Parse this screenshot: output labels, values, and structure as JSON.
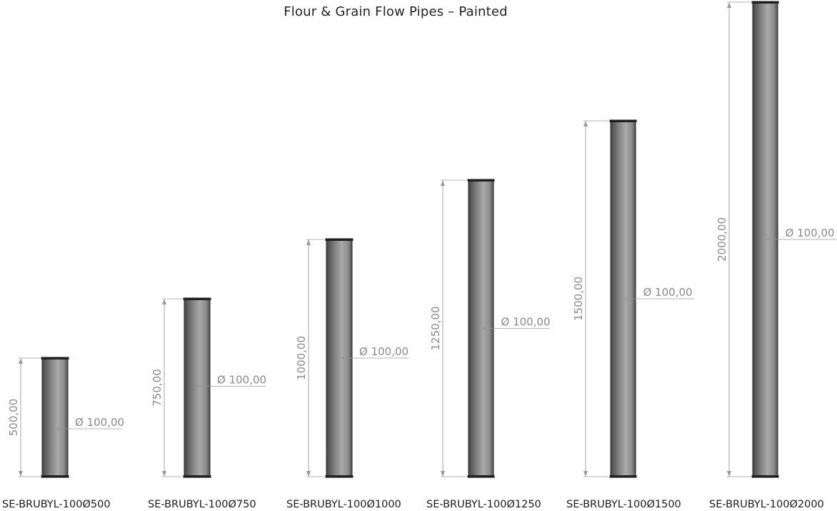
{
  "title": "Flour & Grain Flow Pipes – Painted",
  "colors": {
    "pipe_dark": "#4a4a4a",
    "pipe_light": "#b5b5b5",
    "dimension_line": "#9a9a9a",
    "dimension_text": "#8a8a8a",
    "label_text": "#1c1c1c"
  },
  "pipes": [
    {
      "part_number": "SE-BRUBYL-100Ø500",
      "length": 500,
      "length_label": "500,00",
      "diameter_label": "Ø 100,00"
    },
    {
      "part_number": "SE-BRUBYL-100Ø750",
      "length": 750,
      "length_label": "750,00",
      "diameter_label": "Ø 100,00"
    },
    {
      "part_number": "SE-BRUBYL-100Ø1000",
      "length": 1000,
      "length_label": "1000,00",
      "diameter_label": "Ø 100,00"
    },
    {
      "part_number": "SE-BRUBYL-100Ø1250",
      "length": 1250,
      "length_label": "1250,00",
      "diameter_label": "Ø 100,00"
    },
    {
      "part_number": "SE-BRUBYL-100Ø1500",
      "length": 1500,
      "length_label": "1500,00",
      "diameter_label": "Ø 100,00"
    },
    {
      "part_number": "SE-BRUBYL-100Ø2000",
      "length": 2000,
      "length_label": "2000,00",
      "diameter_label": "Ø 100,00"
    }
  ]
}
